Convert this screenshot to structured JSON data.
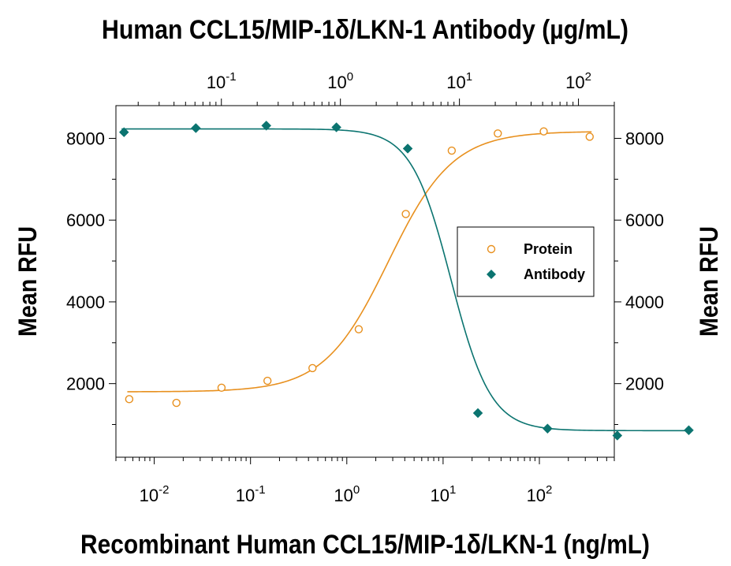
{
  "chart_data": {
    "type": "scatter",
    "title": "Human CCL15/MIP-1δ/LKN-1 Antibody (µg/mL)",
    "xlabel": "Recombinant Human CCL15/MIP-1δ/LKN-1 (ng/mL)",
    "ylabel_left": "Mean RFU",
    "ylabel_right": "Mean RFU",
    "x_scale": "log",
    "x_bottom_range": [
      0.004,
      600
    ],
    "x_top_range": [
      0.013,
      200
    ],
    "y_range": [
      200,
      8800
    ],
    "x_bottom_ticks": [
      {
        "value": 0.01,
        "base": "10",
        "exp": "-2"
      },
      {
        "value": 0.1,
        "base": "10",
        "exp": "-1"
      },
      {
        "value": 1,
        "base": "10",
        "exp": "0"
      },
      {
        "value": 10,
        "base": "10",
        "exp": "1"
      },
      {
        "value": 100,
        "base": "10",
        "exp": "2"
      }
    ],
    "x_top_ticks": [
      {
        "value": 0.1,
        "base": "10",
        "exp": "-1"
      },
      {
        "value": 1,
        "base": "10",
        "exp": "0"
      },
      {
        "value": 10,
        "base": "10",
        "exp": "1"
      },
      {
        "value": 100,
        "base": "10",
        "exp": "2"
      }
    ],
    "y_ticks": [
      {
        "value": 2000,
        "label": "2000"
      },
      {
        "value": 4000,
        "label": "4000"
      },
      {
        "value": 6000,
        "label": "6000"
      },
      {
        "value": 8000,
        "label": "8000"
      }
    ],
    "grid": false,
    "legend_position": "right-middle",
    "series": [
      {
        "name": "Protein",
        "axis": "bottom",
        "marker": "open-circle",
        "color": "#e8901e",
        "x": [
          0.0055,
          0.017,
          0.05,
          0.15,
          0.44,
          1.33,
          4.1,
          12.3,
          37,
          111,
          333
        ],
        "y": [
          1620,
          1530,
          1900,
          2070,
          2380,
          3330,
          6150,
          7700,
          8120,
          8170,
          8040
        ],
        "fit": {
          "bottom": 1800,
          "top": 8170,
          "ec50": 2.7,
          "hill": 1.3
        }
      },
      {
        "name": "Antibody",
        "axis": "top",
        "marker": "filled-diamond",
        "color": "#0b7470",
        "x": [
          0.0152,
          0.061,
          0.2385,
          0.926,
          3.68,
          14.3,
          55,
          212,
          845
        ],
        "y": [
          8150,
          8250,
          8310,
          8270,
          7750,
          1280,
          900,
          730,
          860
        ],
        "fit": {
          "bottom": 850,
          "top": 8230,
          "ec50": 8.5,
          "hill": -2.6
        }
      }
    ]
  }
}
